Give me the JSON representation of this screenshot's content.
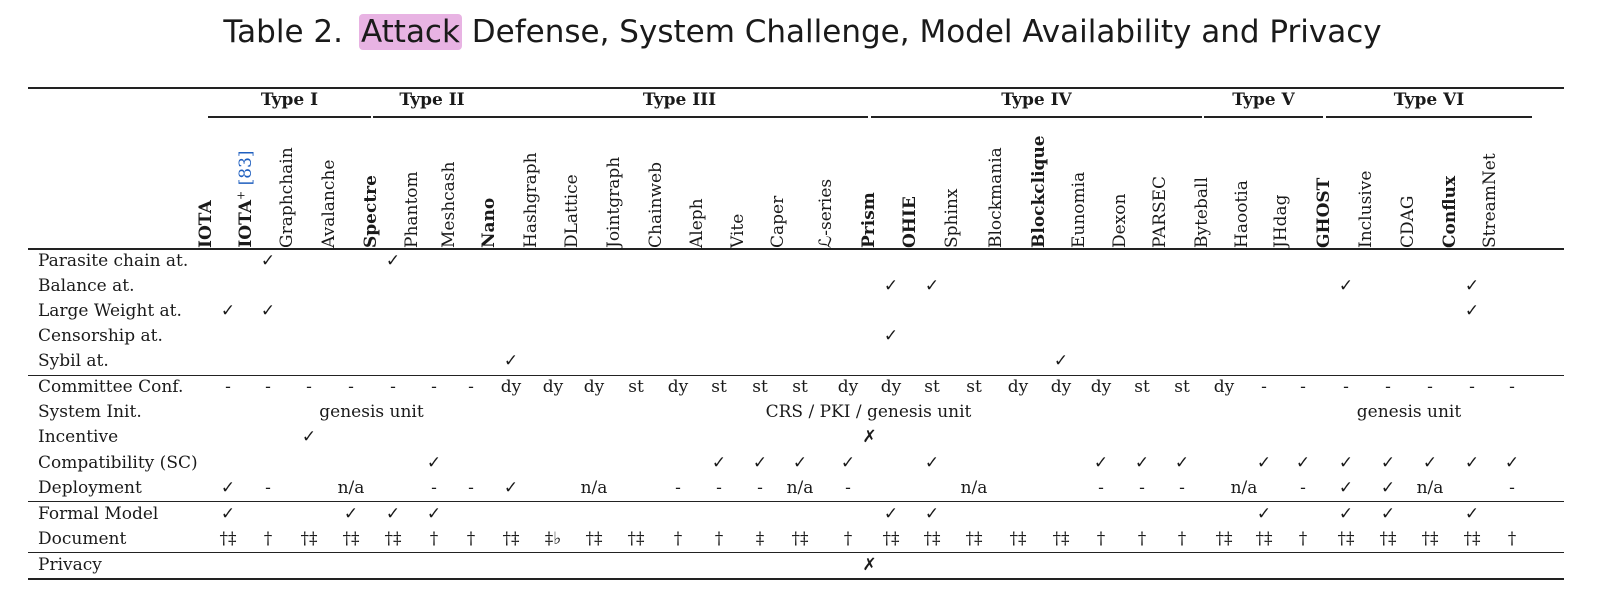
{
  "caption": {
    "prefix": "Table 2.",
    "highlighted": "Attack",
    "rest": " Defense, System Challenge, Model Availability and Privacy"
  },
  "groups": [
    {
      "label": "Type I",
      "from": 0,
      "to": 3
    },
    {
      "label": "Type II",
      "from": 4,
      "to": 6
    },
    {
      "label": "Type III",
      "from": 7,
      "to": 15
    },
    {
      "label": "Type IV",
      "from": 16,
      "to": 23
    },
    {
      "label": "Type V",
      "from": 24,
      "to": 26
    },
    {
      "label": "Type VI",
      "from": 27,
      "to": 31
    }
  ],
  "columns": [
    {
      "label": "IOTA",
      "bold": true
    },
    {
      "label": "IOTA",
      "sup": "+",
      "ref": "[83]",
      "bold": true
    },
    {
      "label": "Graphchain"
    },
    {
      "label": "Avalanche"
    },
    {
      "label": "Spectre",
      "bold": true
    },
    {
      "label": "Phantom"
    },
    {
      "label": "Meshcash"
    },
    {
      "label": "Nano",
      "bold": true
    },
    {
      "label": "Hashgraph"
    },
    {
      "label": "DLattice"
    },
    {
      "label": "Jointgraph"
    },
    {
      "label": "Chainweb"
    },
    {
      "label": "Aleph"
    },
    {
      "label": "Vite"
    },
    {
      "label": "Caper"
    },
    {
      "label": "ℒ-series"
    },
    {
      "label": "Prism",
      "bold": true
    },
    {
      "label": "OHIE",
      "bold": true
    },
    {
      "label": "Sphinx"
    },
    {
      "label": "Blockmania"
    },
    {
      "label": "Blockclique",
      "bold": true
    },
    {
      "label": "Eunomia"
    },
    {
      "label": "Dexon"
    },
    {
      "label": "PARSEC"
    },
    {
      "label": "Byteball"
    },
    {
      "label": "Haootia"
    },
    {
      "label": "JHdag"
    },
    {
      "label": "GHOST",
      "bold": true
    },
    {
      "label": "Inclusive"
    },
    {
      "label": "CDAG"
    },
    {
      "label": "Conflux",
      "bold": true
    },
    {
      "label": "StreamNet"
    }
  ],
  "rows": [
    {
      "label": "Parasite chain at.",
      "cells": {
        "1": "✓",
        "4": "✓"
      }
    },
    {
      "label": "Balance at.",
      "cells": {
        "16": "✓",
        "17": "✓",
        "27": "✓",
        "30": "✓"
      }
    },
    {
      "label": "Large Weight at.",
      "cells": {
        "0": "✓",
        "1": "✓",
        "30": "✓"
      }
    },
    {
      "label": "Censorship at.",
      "cells": {
        "16": "✓"
      }
    },
    {
      "label": "Sybil at.",
      "cells": {
        "7": "✓",
        "20": "✓"
      }
    },
    {
      "label": "Committee Conf.",
      "cells": {
        "0": "-",
        "1": "-",
        "2": "-",
        "3": "-",
        "4": "-",
        "5": "-",
        "6": "-",
        "7": "dy",
        "8": "dy",
        "9": "dy",
        "10": "st",
        "11": "dy",
        "12": "st",
        "13": "st",
        "14": "st",
        "15": "dy",
        "16": "dy",
        "17": "st",
        "18": "st",
        "19": "dy",
        "20": "dy",
        "21": "dy",
        "22": "st",
        "23": "st",
        "24": "dy",
        "25": "-",
        "26": "-",
        "27": "-",
        "28": "-",
        "29": "-",
        "30": "-",
        "31": "-"
      }
    },
    {
      "label": "System Init.",
      "cells": {},
      "spans": [
        {
          "text": "genesis unit",
          "from": 2,
          "to": 5
        },
        {
          "text": "CRS / PKI / genesis unit",
          "from": 12,
          "to": 19
        },
        {
          "text": "genesis unit",
          "from": 27,
          "to": 30
        }
      ]
    },
    {
      "label": "Incentive",
      "cells": {
        "2": "✓"
      },
      "between": [
        {
          "text": "✗",
          "after": 15
        }
      ]
    },
    {
      "label": "Compatibility (SC)",
      "cells": {
        "5": "✓",
        "12": "✓",
        "13": "✓",
        "14": "✓",
        "15": "✓",
        "17": "✓",
        "21": "✓",
        "22": "✓",
        "23": "✓",
        "25": "✓",
        "26": "✓",
        "27": "✓",
        "28": "✓",
        "29": "✓",
        "30": "✓",
        "31": "✓"
      }
    },
    {
      "label": "Deployment",
      "cells": {
        "0": "✓",
        "1": "-",
        "5": "-",
        "6": "-",
        "7": "✓",
        "11": "-",
        "12": "-",
        "13": "-",
        "15": "-",
        "21": "-",
        "22": "-",
        "23": "-",
        "26": "-",
        "27": "✓",
        "28": "✓",
        "31": "-"
      },
      "spans": [
        {
          "text": "n/a",
          "from": 3,
          "to": 3
        },
        {
          "text": "n/a",
          "from": 9,
          "to": 9
        },
        {
          "text": "n/a",
          "from": 14,
          "to": 14
        },
        {
          "text": "n/a",
          "from": 18,
          "to": 18
        },
        {
          "text": "n/a",
          "from": 24,
          "to": 25
        },
        {
          "text": "n/a",
          "from": 29,
          "to": 29
        }
      ]
    },
    {
      "label": "Formal Model",
      "cells": {
        "0": "✓",
        "3": "✓",
        "4": "✓",
        "5": "✓",
        "16": "✓",
        "17": "✓",
        "25": "✓",
        "27": "✓",
        "28": "✓",
        "30": "✓"
      }
    },
    {
      "label": "Document",
      "cells": {
        "0": "†‡",
        "1": "†",
        "2": "†‡",
        "3": "†‡",
        "4": "†‡",
        "5": "†",
        "6": "†",
        "7": "†‡",
        "8": "‡♭",
        "9": "†‡",
        "10": "†‡",
        "11": "†",
        "12": "†",
        "13": "‡",
        "14": "†‡",
        "15": "†",
        "16": "†‡",
        "17": "†‡",
        "18": "†‡",
        "19": "†‡",
        "20": "†‡",
        "21": "†",
        "22": "†",
        "23": "†",
        "24": "†‡",
        "25": "†‡",
        "26": "†",
        "27": "†‡",
        "28": "†‡",
        "29": "†‡",
        "30": "†‡",
        "31": "†"
      }
    },
    {
      "label": "Privacy",
      "cells": {},
      "between": [
        {
          "text": "✗",
          "after": 15
        }
      ]
    }
  ]
}
